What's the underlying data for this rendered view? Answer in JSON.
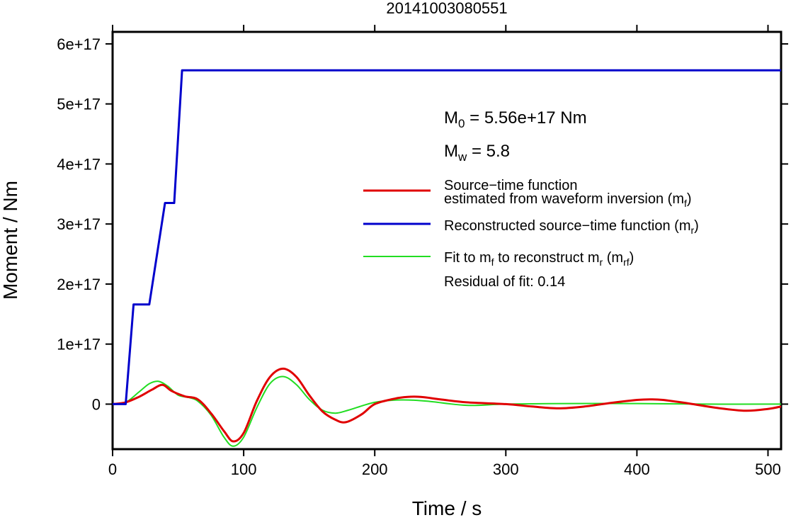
{
  "chart_data": {
    "type": "line",
    "title": "20141003080551",
    "xlabel": "Time / s",
    "ylabel": "Moment / Nm",
    "xlim": [
      0,
      510
    ],
    "ylim": [
      -7.5e+16,
      6.2e+17
    ],
    "x_ticks": [
      0,
      100,
      200,
      300,
      400,
      500
    ],
    "x_tick_labels": [
      "0",
      "100",
      "200",
      "300",
      "400",
      "500"
    ],
    "y_ticks": [
      0,
      1e+17,
      2e+17,
      3e+17,
      4e+17,
      5e+17,
      6e+17
    ],
    "y_tick_labels": [
      "0",
      "1e+17",
      "2e+17",
      "3e+17",
      "4e+17",
      "5e+17",
      "6e+17"
    ],
    "grid": false,
    "legend_position": "right",
    "annotations": {
      "m0_base": "M",
      "m0_sub": "0",
      "m0_rest": " = 5.56e+17 Nm",
      "mw_base": "M",
      "mw_sub": "w",
      "mw_rest": " = 5.8",
      "residual": "Residual of fit: 0.14"
    },
    "series": [
      {
        "name": "Source−time function estimated from waveform inversion (m_f)",
        "legend_line1": "Source−time function",
        "legend_line2": "estimated from waveform inversion (m",
        "legend_sub": "f",
        "legend_end": ")",
        "color": "#e00000",
        "width": 3,
        "x": [
          0,
          10,
          20,
          30,
          38,
          45,
          55,
          65,
          75,
          85,
          92,
          100,
          110,
          120,
          130,
          140,
          150,
          160,
          170,
          178,
          190,
          200,
          215,
          225,
          235,
          250,
          270,
          300,
          320,
          340,
          360,
          380,
          400,
          410,
          420,
          440,
          460,
          483,
          500,
          510
        ],
        "y": [
          0,
          3000000000000000.0,
          1.2e+16,
          2.4e+16,
          3.2e+16,
          2.2e+16,
          1.3e+16,
          8000000000000000.0,
          -1.5e+16,
          -4.5e+16,
          -6.2e+16,
          -4.8e+16,
          5000000000000000.0,
          4.5e+16,
          5.9e+16,
          4.6e+16,
          1.5e+16,
          -1.2e+16,
          -2.6e+16,
          -3e+16,
          -1.7e+16,
          0,
          9000000000000000.0,
          1.2e+16,
          1.2e+16,
          8000000000000000.0,
          3000000000000000.0,
          0,
          -4000000000000000.0,
          -7000000000000000.0,
          -4000000000000000.0,
          2000000000000000.0,
          7000000000000000.0,
          8000000000000000.0,
          7000000000000000.0,
          1000000000000000.0,
          -6000000000000000.0,
          -1.1e+16,
          -8000000000000000.0,
          -4000000000000000.0
        ]
      },
      {
        "name": "Reconstructed source−time function (m_r)",
        "legend_line1": "Reconstructed source−time function (m",
        "legend_sub": "r",
        "legend_end": ")",
        "color": "#0000cc",
        "width": 3,
        "x": [
          0,
          10,
          16,
          28,
          40,
          47,
          53,
          510
        ],
        "y": [
          0,
          0,
          1.66e+17,
          1.66e+17,
          3.35e+17,
          3.35e+17,
          5.56e+17,
          5.56e+17
        ]
      },
      {
        "name": "Fit to m_f to reconstruct m_r (m_rf)",
        "legend_text_a": "Fit to m",
        "legend_sub_a": "f",
        "legend_text_b": " to reconstruct m",
        "legend_sub_b": "r",
        "legend_text_c": " (m",
        "legend_sub_c": "rf",
        "legend_end": ")",
        "color": "#22dd22",
        "width": 2,
        "x": [
          0,
          10,
          20,
          28,
          35,
          42,
          50,
          58,
          65,
          75,
          85,
          92,
          100,
          110,
          120,
          130,
          140,
          150,
          160,
          170,
          180,
          200,
          220,
          240,
          270,
          300,
          350,
          400,
          450,
          510
        ],
        "y": [
          0,
          3000000000000000.0,
          2e+16,
          3.4e+16,
          3.8e+16,
          3e+16,
          1.5e+16,
          1.1e+16,
          5000000000000000.0,
          -1.8e+16,
          -5.5e+16,
          -7e+16,
          -5.5e+16,
          -6000000000000000.0,
          3.4e+16,
          4.6e+16,
          3.3e+16,
          8000000000000000.0,
          -1e+16,
          -1.5e+16,
          -1e+16,
          3000000000000000.0,
          7000000000000000.0,
          5000000000000000.0,
          -2000000000000000.0,
          0,
          1000000000000000.0,
          1000000000000000.0,
          0,
          0
        ]
      }
    ]
  }
}
